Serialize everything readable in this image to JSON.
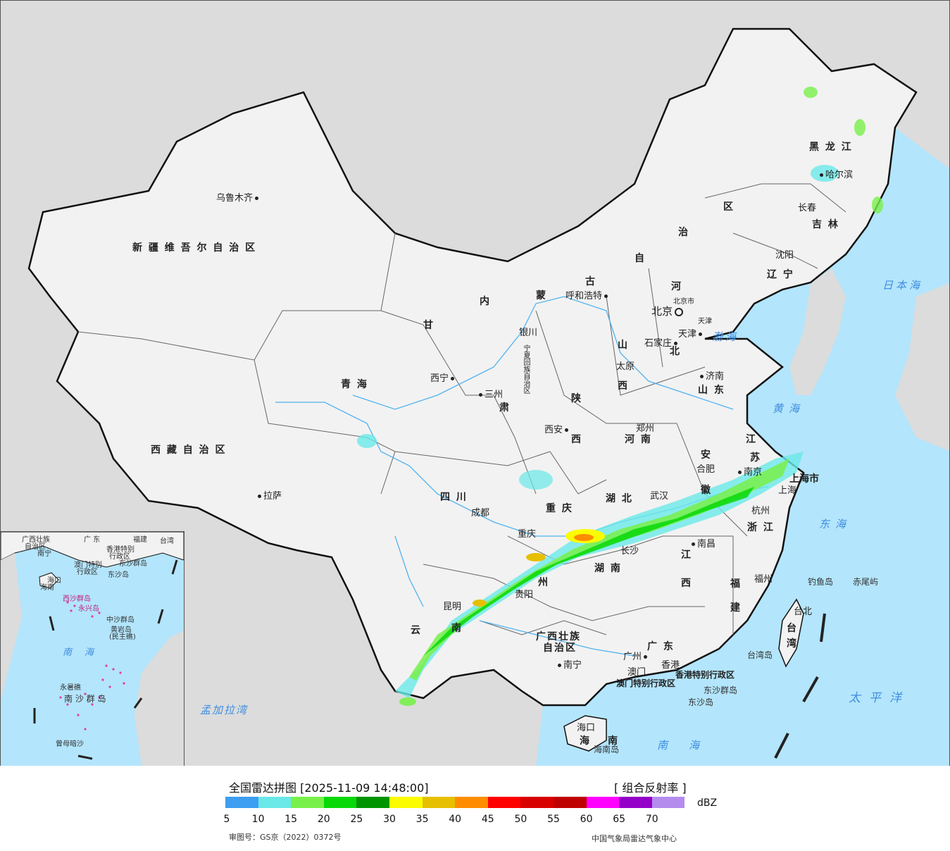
{
  "map": {
    "colors": {
      "sea": "#b3e5fc",
      "land_china": "#f2f2f2",
      "land_other": "#dcdcdc",
      "border": "#111111",
      "river": "#4fb3f0"
    },
    "cities": {
      "urumqi": "乌鲁木齐",
      "lhasa": "拉萨",
      "xining": "西宁",
      "lanzhou": "三州",
      "yinchuan": "银川",
      "hohhot": "呼和浩特",
      "beijing": "北京",
      "beijing_small": "北京市",
      "tianjin": "天津",
      "tianjin_small": "天津",
      "shijiazhuang": "石家庄",
      "taiyuan": "太原",
      "jinan": "济南",
      "zhengzhou": "郑州",
      "xian": "西安",
      "chengdu": "成都",
      "chongqing": "重庆",
      "chongqing_big": "重 庆",
      "wuhan": "武汉",
      "hefei": "合肥",
      "nanjing": "南京",
      "shanghai": "上海",
      "shanghai_city": "上海市",
      "hangzhou": "杭州",
      "nanchang": "南昌",
      "changsha": "长沙",
      "guiyang": "贵阳",
      "kunming": "昆明",
      "nanning": "南宁",
      "guangzhou": "广州",
      "fuzhou": "福州",
      "taipei": "台北",
      "haikou": "海口",
      "macau": "澳门",
      "hongkong": "香港",
      "harbin": "哈尔滨",
      "changchun": "长春",
      "shenyang": "沈阳"
    },
    "provinces": {
      "xinjiang": "新 疆 维 吾 尔 自 治 区",
      "xizang": "西 藏 自 治 区",
      "qinghai": "青    海",
      "gansu": "甘",
      "gansu_su": "肃",
      "neimeng_nei": "内",
      "neimeng_meng": "蒙",
      "neimeng_gu": "古",
      "neimeng_zi": "自",
      "neimeng_zhi": "治",
      "neimeng_qu": "区",
      "ningxia": "宁夏回族自治区",
      "heilongjiang": "黑 龙 江",
      "jilin": "吉 林",
      "liaoning": "辽 宁",
      "hebei_he": "河",
      "hebei_bei": "北",
      "shanxi_shan": "山",
      "shanxi_xi": "西",
      "shaanxi_shan": "陕",
      "shaanxi_xi": "西",
      "henan": "河 南",
      "shandong": "山 东",
      "jiangsu_jiang": "江",
      "jiangsu_su": "苏",
      "anhui_an": "安",
      "anhui_hui": "徽",
      "zhejiang": "浙 江",
      "sichuan": "四    川",
      "hubei": "湖  北",
      "hunan": "湖    南",
      "jiangxi_jiang": "江",
      "jiangxi_xi": "西",
      "guizhou": "州",
      "yunnan": "南",
      "yunnan_yun": "云",
      "guangxi": "广西壮族",
      "guangxi2": "自治区",
      "guangdong": "广  东",
      "fujian_fu": "福",
      "fujian_jian": "建",
      "taiwan_tai": "台",
      "taiwan_wan": "湾",
      "hainan_hai": "海",
      "hainan_nan": "南",
      "hk_sar": "香港特别行政区",
      "macau_sar": "澳门特别行政区"
    },
    "seas": {
      "bohai": "渤海",
      "yellow_sea": "黄海",
      "east_sea": "东海",
      "japan_sea": "日本海",
      "pacific": "太平洋",
      "south_sea": "南海",
      "bengal": "孟加拉湾"
    },
    "islands": {
      "diaoyu": "钓鱼岛",
      "chiwei": "赤尾屿",
      "taiwan_island": "台湾岛",
      "dongsha_islands": "东沙群岛",
      "dongsha_island": "东沙岛",
      "hainan_island": "海南岛"
    }
  },
  "inset": {
    "labels": {
      "guangxi": "广西壮族",
      "guangxi2": "自治区",
      "guangdong": "广 东",
      "fujian": "福建",
      "taiwan": "台湾",
      "nanning": "南宁",
      "hk": "香港特别",
      "hk2": "行政区",
      "macau": "澳门特别",
      "macau2": "行政区",
      "hainan": "海南",
      "haikou": "海口",
      "xisha": "西沙群岛",
      "yongxing": "永兴岛",
      "zhongsha": "中沙群岛",
      "huangyan": "黄岩岛",
      "huangyan2": "(民主礁)",
      "nansha": "南 沙 群 岛",
      "yongshu": "永暑礁",
      "zengmu": "曾母暗沙",
      "dongsha_islands": "东沙群岛",
      "dongsha": "东沙岛",
      "sea": "南海"
    }
  },
  "legend": {
    "title": "全国雷达拼图 [2025-11-09 14:48:00]",
    "product": "[ 组合反射率 ]",
    "unit": "dBZ",
    "colors": [
      "#3c9ef0",
      "#6ae8e8",
      "#78f04a",
      "#08d808",
      "#009400",
      "#fcfc00",
      "#e6c000",
      "#ff8c00",
      "#ff0000",
      "#d80000",
      "#c00000",
      "#ff00ff",
      "#9400c8",
      "#b48cee"
    ],
    "ticks": [
      "5",
      "10",
      "15",
      "20",
      "25",
      "30",
      "35",
      "40",
      "45",
      "50",
      "55",
      "60",
      "65",
      "70"
    ],
    "approval": "审图号：GS京（2022）0372号",
    "org": "中国气象局雷达气象中心"
  }
}
